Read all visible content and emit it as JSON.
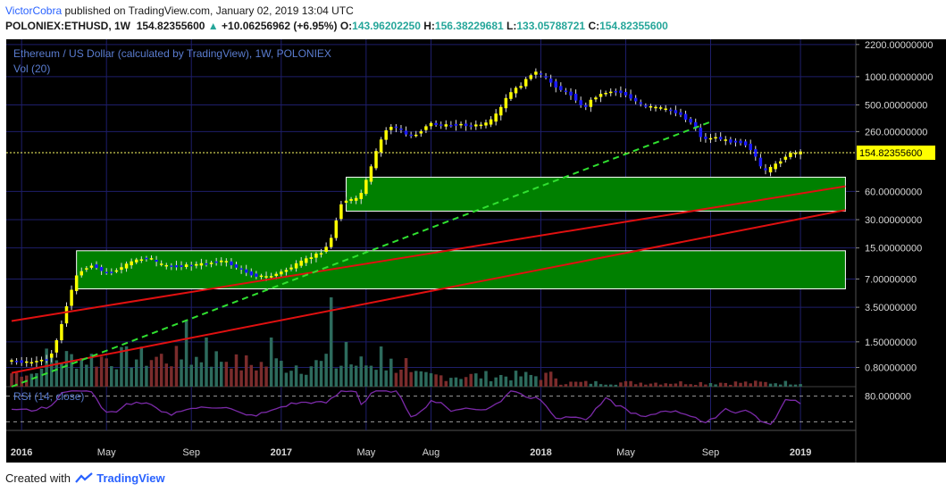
{
  "header": {
    "author": "VictorCobra",
    "published_text": "published on TradingView.com, January 02, 2019 13:04 UTC",
    "symbol": "POLONIEX:ETHUSD, 1W",
    "last_price": "154.82355600",
    "change": "+10.06256962 (+6.95%)",
    "open_label": "O:",
    "open": "143.96202250",
    "high_label": "H:",
    "high": "156.38229681",
    "low_label": "L:",
    "low": "133.05788721",
    "close_label": "C:",
    "close": "154.82355600"
  },
  "footer": {
    "created_with": "Created with",
    "brand": "TradingView"
  },
  "colors": {
    "background": "#000000",
    "grid": "#1e1e6a",
    "candle_up": "#ffff00",
    "candle_down": "#1a1aff",
    "zone_fill": "#008000",
    "trendline_red": "#e01010",
    "trendline_green": "#30e030",
    "vol_up": "#2d6b5d",
    "vol_down": "#7b2c2c",
    "rsi": "#7b2aa8",
    "price_label_bg": "#ffff00"
  },
  "chart_data": {
    "type": "candlestick",
    "title": "Ethereum / US Dollar (calculated by TradingView), 1W, POLONIEX",
    "volume_label": "Vol (20)",
    "rsi_label": "RSI (14, close)",
    "rsi_axis_label": "80.000000",
    "price_scale": "log",
    "ylim": [
      0.5,
      2500
    ],
    "y_ticks": [
      {
        "value": 2200,
        "label": "2200.00000000"
      },
      {
        "value": 1000,
        "label": "1000.00000000"
      },
      {
        "value": 500,
        "label": "500.00000000"
      },
      {
        "value": 260,
        "label": "260.00000000"
      },
      {
        "value": 60,
        "label": "60.00000000"
      },
      {
        "value": 30,
        "label": "30.00000000"
      },
      {
        "value": 15,
        "label": "15.00000000"
      },
      {
        "value": 7,
        "label": "7.00000000"
      },
      {
        "value": 3.5,
        "label": "3.50000000"
      },
      {
        "value": 1.5,
        "label": "1.50000000"
      },
      {
        "value": 0.8,
        "label": "0.80000000"
      }
    ],
    "current_price": {
      "value": 154.823556,
      "label": "154.82355600"
    },
    "x_ticks": [
      {
        "label": "2016",
        "week": 2,
        "bold": true
      },
      {
        "label": "May",
        "week": 19,
        "bold": false
      },
      {
        "label": "Sep",
        "week": 36,
        "bold": false
      },
      {
        "label": "2017",
        "week": 54,
        "bold": true
      },
      {
        "label": "May",
        "week": 71,
        "bold": false
      },
      {
        "label": "Aug",
        "week": 84,
        "bold": false
      },
      {
        "label": "2018",
        "week": 106,
        "bold": true
      },
      {
        "label": "May",
        "week": 123,
        "bold": false
      },
      {
        "label": "Sep",
        "week": 140,
        "bold": false
      },
      {
        "label": "2019",
        "week": 158,
        "bold": true
      }
    ],
    "zones": [
      {
        "from_week": 67,
        "to_week": 167,
        "low": 37,
        "high": 85
      },
      {
        "from_week": 13,
        "to_week": 167,
        "low": 5.5,
        "high": 14
      }
    ],
    "trendlines": [
      {
        "color": "red",
        "style": "solid",
        "points": [
          [
            0,
            2.5
          ],
          [
            167,
            68
          ]
        ]
      },
      {
        "color": "red",
        "style": "solid",
        "points": [
          [
            0,
            0.7
          ],
          [
            167,
            38
          ]
        ]
      },
      {
        "color": "green",
        "style": "dashed",
        "points": [
          [
            0,
            0.5
          ],
          [
            140,
            330
          ]
        ]
      }
    ],
    "price_anchors": [
      [
        0,
        0.95
      ],
      [
        4,
        0.9
      ],
      [
        8,
        1.0
      ],
      [
        10,
        1.8
      ],
      [
        11,
        3.0
      ],
      [
        13,
        6.5
      ],
      [
        14,
        8.5
      ],
      [
        17,
        10
      ],
      [
        19,
        8
      ],
      [
        22,
        9
      ],
      [
        25,
        11
      ],
      [
        28,
        12
      ],
      [
        30,
        10
      ],
      [
        33,
        9.5
      ],
      [
        38,
        10
      ],
      [
        43,
        11
      ],
      [
        46,
        9
      ],
      [
        49,
        7.6
      ],
      [
        52,
        7.4
      ],
      [
        55,
        8.5
      ],
      [
        59,
        11
      ],
      [
        63,
        14
      ],
      [
        65,
        21
      ],
      [
        66,
        42
      ],
      [
        67,
        48
      ],
      [
        70,
        50
      ],
      [
        72,
        90
      ],
      [
        74,
        190
      ],
      [
        76,
        300
      ],
      [
        78,
        280
      ],
      [
        80,
        230
      ],
      [
        82,
        250
      ],
      [
        84,
        320
      ],
      [
        87,
        300
      ],
      [
        90,
        310
      ],
      [
        93,
        300
      ],
      [
        96,
        320
      ],
      [
        98,
        420
      ],
      [
        100,
        650
      ],
      [
        103,
        850
      ],
      [
        105,
        1150
      ],
      [
        107,
        1000
      ],
      [
        110,
        750
      ],
      [
        113,
        620
      ],
      [
        115,
        450
      ],
      [
        117,
        600
      ],
      [
        120,
        700
      ],
      [
        122,
        700
      ],
      [
        124,
        620
      ],
      [
        127,
        480
      ],
      [
        130,
        470
      ],
      [
        134,
        410
      ],
      [
        137,
        310
      ],
      [
        139,
        210
      ],
      [
        141,
        230
      ],
      [
        144,
        205
      ],
      [
        147,
        200
      ],
      [
        149,
        160
      ],
      [
        151,
        95
      ],
      [
        153,
        110
      ],
      [
        156,
        150
      ],
      [
        158,
        154.82
      ]
    ],
    "volume_spikes": [
      {
        "week": 35,
        "vol": 0.75
      },
      {
        "week": 39,
        "vol": 0.55
      },
      {
        "week": 52,
        "vol": 0.55
      },
      {
        "week": 64,
        "vol": 1.0
      },
      {
        "week": 67,
        "vol": 0.5
      },
      {
        "week": 74,
        "vol": 0.45
      }
    ]
  }
}
